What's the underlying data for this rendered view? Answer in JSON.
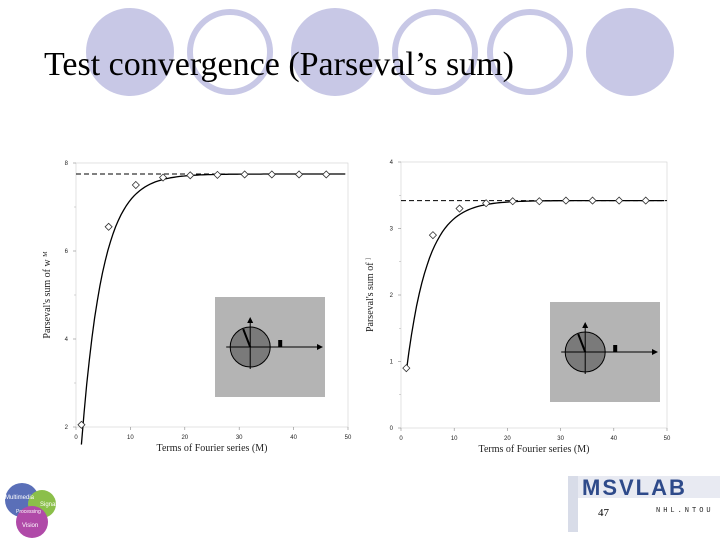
{
  "slide": {
    "title": "Test convergence (Parseval’s sum)",
    "page_number": "47",
    "accent_color": "#c8c8e6",
    "circle_outline": "#c8c8e6"
  },
  "logos": {
    "left": {
      "words": [
        "Multimedia",
        "Signal",
        "Processing",
        "Vision"
      ]
    },
    "right": {
      "name": "MSVLAB",
      "subtitle": "NHL.NTOU"
    }
  },
  "chart_data": [
    {
      "type": "line",
      "title": "",
      "xlabel": "Terms of Fourier series (M)",
      "ylabel": "Parseval's sum of w",
      "ylabel_sup": "M",
      "xlim": [
        0,
        50
      ],
      "ylim": [
        2,
        8
      ],
      "xticks": [
        0,
        10,
        20,
        30,
        40,
        50
      ],
      "yticks": [
        2,
        4,
        6,
        8
      ],
      "reference_line": 7.75,
      "series": [
        {
          "name": "markers",
          "style": "diamond",
          "x": [
            1,
            6,
            11,
            16,
            21,
            26,
            31,
            36,
            41,
            46
          ],
          "y": [
            2.05,
            6.55,
            7.5,
            7.67,
            7.72,
            7.73,
            7.74,
            7.74,
            7.74,
            7.74
          ]
        },
        {
          "name": "curve",
          "style": "solid",
          "asymptote": 7.75,
          "start": 1.6,
          "rate": 0.26
        }
      ],
      "inset": {
        "background": "#b4b4b4",
        "disc_color": "#7a7a7a"
      }
    },
    {
      "type": "line",
      "title": "",
      "xlabel": "Terms of Fourier series (M)",
      "ylabel": "Parseval's sum of",
      "ylabel_sup": "]",
      "xlim": [
        0,
        50
      ],
      "ylim": [
        0,
        4
      ],
      "xticks": [
        0,
        10,
        20,
        30,
        40,
        50
      ],
      "yticks": [
        0,
        1,
        2,
        3,
        4
      ],
      "reference_line": 3.42,
      "series": [
        {
          "name": "markers",
          "style": "diamond",
          "x": [
            1,
            6,
            11,
            16,
            21,
            26,
            31,
            36,
            41,
            46
          ],
          "y": [
            0.9,
            2.9,
            3.3,
            3.38,
            3.41,
            3.41,
            3.42,
            3.42,
            3.42,
            3.42
          ]
        },
        {
          "name": "curve",
          "style": "solid",
          "asymptote": 3.42,
          "start": 0.85,
          "rate": 0.25
        }
      ],
      "inset": {
        "background": "#b4b4b4",
        "disc_color": "#7a7a7a"
      }
    }
  ]
}
